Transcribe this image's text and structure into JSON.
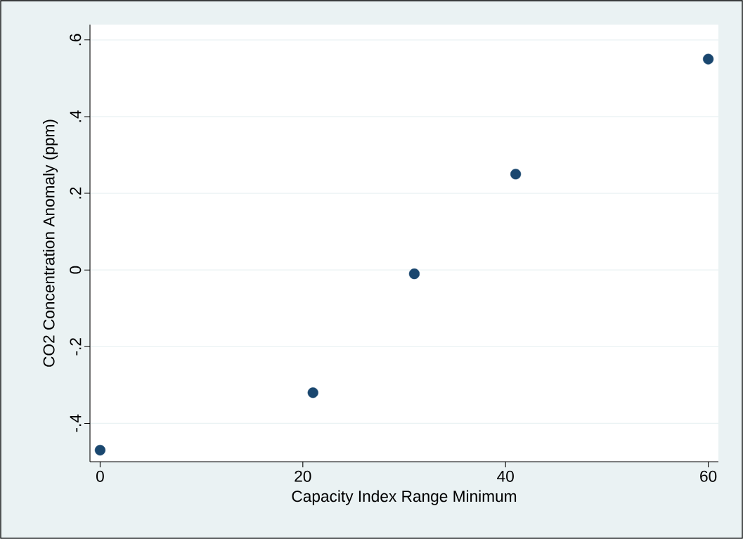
{
  "chart_data": {
    "type": "scatter",
    "xlabel": "Capacity Index Range Minimum",
    "ylabel": "CO2 Concentration Anomaly (ppm)",
    "x": [
      0,
      21,
      31,
      41,
      60
    ],
    "series": [
      {
        "color": "#1a476f",
        "values": [
          -0.47,
          -0.32,
          -0.01,
          0.25,
          0.55
        ]
      }
    ],
    "xlim": [
      -1,
      61
    ],
    "ylim": [
      -0.5,
      0.64
    ],
    "xticks": [
      0,
      20,
      40,
      60
    ],
    "yticks": [
      {
        "value": -0.4,
        "label": "-.4"
      },
      {
        "value": -0.2,
        "label": "-.2"
      },
      0,
      {
        "value": 0.2,
        "label": ".2"
      },
      {
        "value": 0.4,
        "label": ".4"
      },
      {
        "value": 0.6,
        "label": ".6"
      }
    ],
    "grid": "y",
    "marker": "circle"
  }
}
